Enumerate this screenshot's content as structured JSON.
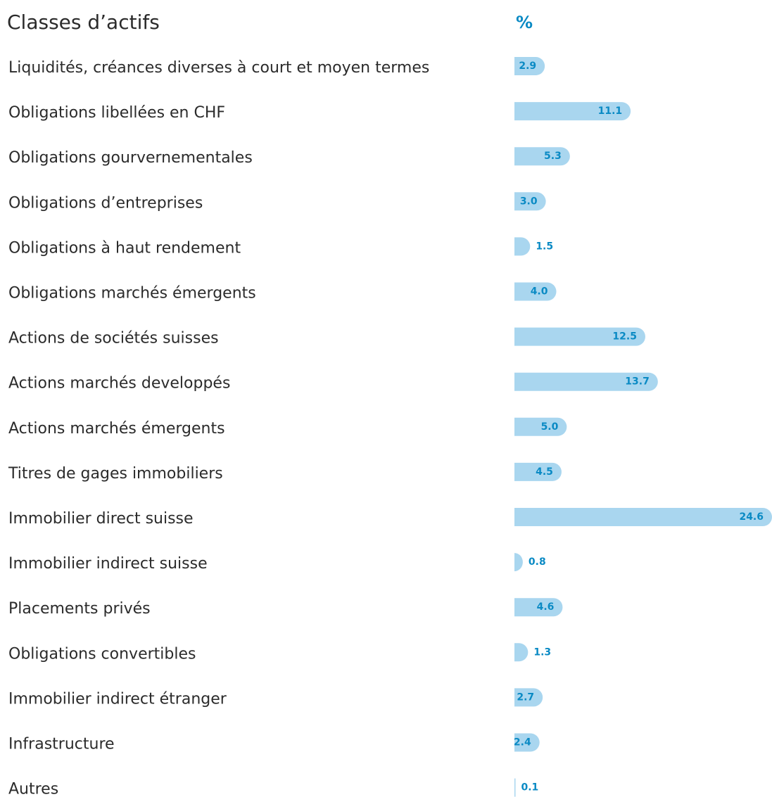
{
  "chart_data": {
    "type": "bar",
    "orientation": "horizontal",
    "title": "Classes d’actifs",
    "value_header": "%",
    "color": "#a9d6ef",
    "categories": [
      "Liquidités, créances diverses à court et moyen termes",
      "Obligations libellées en CHF",
      "Obligations gourvernementales",
      "Obligations d’entreprises",
      "Obligations à haut rendement",
      "Obligations marchés émergents",
      "Actions de sociétés suisses",
      "Actions marchés developpés",
      "Actions marchés émergents",
      "Titres de gages immobiliers",
      "Immobilier direct suisse",
      "Immobilier indirect suisse",
      "Placements privés",
      "Obligations convertibles",
      "Immobilier indirect étranger",
      "Infrastructure",
      "Autres"
    ],
    "values": [
      2.9,
      11.1,
      5.3,
      3.0,
      1.5,
      4.0,
      12.5,
      13.7,
      5.0,
      4.5,
      24.6,
      0.8,
      4.6,
      1.3,
      2.7,
      2.4,
      0.1
    ],
    "value_labels": [
      "2.9",
      "11.1",
      "5.3",
      "3.0",
      "1.5",
      "4.0",
      "12.5",
      "13.7",
      "5.0",
      "4.5",
      "24.6",
      "0.8",
      "4.6",
      "1.3",
      "2.7",
      "2.4",
      "0.1"
    ]
  }
}
